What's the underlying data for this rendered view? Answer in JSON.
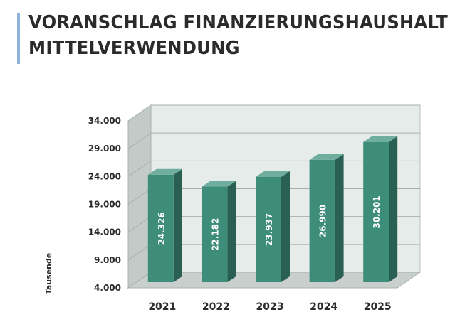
{
  "header": {
    "title_line1": "VORANSCHLAG FINANZIERUNGSHAUSHALT",
    "title_line2": "MITTELVERWENDUNG"
  },
  "colors": {
    "accent": "#8fb3d9",
    "bar_front": "#3e8c7a",
    "bar_side": "#2a5f53",
    "bar_top": "#6fae9e",
    "wall": "#e6ecea",
    "floor": "#c9cfcd"
  },
  "chart_data": {
    "type": "bar",
    "title": "",
    "xlabel": "",
    "ylabel": "Tausende",
    "categories": [
      "2021",
      "2022",
      "2023",
      "2024",
      "2025"
    ],
    "values": [
      24326,
      22182,
      23937,
      26990,
      30201
    ],
    "value_labels": [
      "24.326",
      "22.182",
      "23.937",
      "26.990",
      "30.201"
    ],
    "ylim": [
      4000,
      34000
    ],
    "yticks": [
      4000,
      9000,
      14000,
      19000,
      24000,
      29000,
      34000
    ],
    "ytick_labels": [
      "4.000",
      "9.000",
      "14.000",
      "19.000",
      "24.000",
      "29.000",
      "34.000"
    ],
    "grid": true,
    "legend": "none",
    "style": "3d"
  }
}
